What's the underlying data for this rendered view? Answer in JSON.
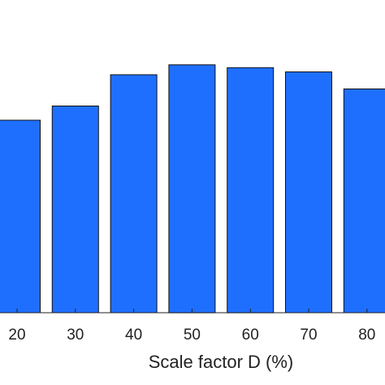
{
  "chart_data": {
    "type": "bar",
    "categories": [
      "20",
      "30",
      "40",
      "50",
      "60",
      "70",
      "80"
    ],
    "values": [
      73,
      78,
      89,
      92.5,
      91.5,
      90,
      84
    ],
    "xlabel": "Scale factor D (%)",
    "ylabel": "",
    "title": "",
    "bar_color": "#1f6fff",
    "edge_color": "#111111",
    "grid": false
  }
}
